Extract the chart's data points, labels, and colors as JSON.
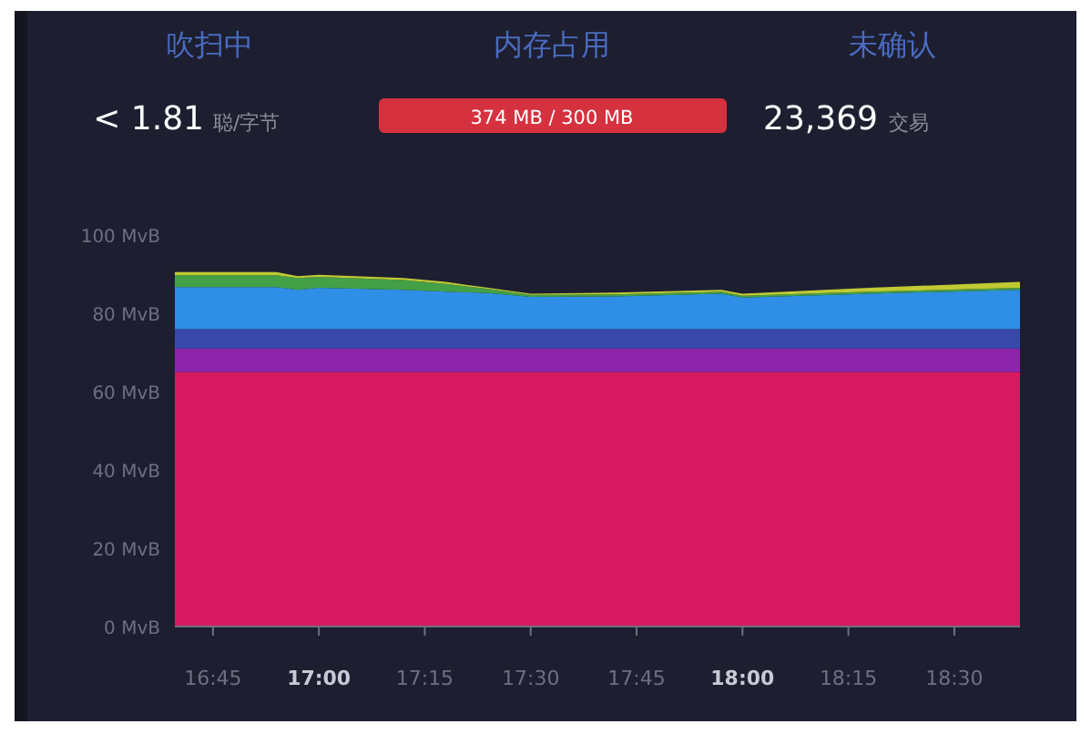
{
  "chart_data": {
    "type": "area",
    "stacked": true,
    "annotations": [
      "吹扫中",
      "< 1.81",
      "聪/字节",
      "内存占用",
      "374 MB / 300 MB",
      "未确认",
      "23,369",
      "交易"
    ],
    "x": [
      16.66,
      16.9,
      16.95,
      17.0,
      17.2,
      17.3,
      17.4,
      17.5,
      17.7,
      17.95,
      18.0,
      18.3,
      18.655
    ],
    "series": [
      {
        "color": "#d81b60",
        "values": [
          65,
          65,
          65,
          65,
          65,
          65,
          65,
          65,
          65,
          65,
          65,
          65,
          65
        ]
      },
      {
        "color": "#8e24aa",
        "values": [
          6,
          6,
          6,
          6,
          6,
          6,
          6,
          6,
          6,
          6,
          6,
          6,
          6
        ]
      },
      {
        "color": "#3949ab",
        "values": [
          5,
          5,
          5,
          5,
          5,
          5,
          5,
          5,
          5,
          5,
          5,
          5,
          5
        ]
      },
      {
        "color": "#2f8fe6",
        "values": [
          10.7,
          10.7,
          10,
          10.5,
          10,
          9.5,
          9.2,
          8.2,
          8.3,
          9,
          8,
          9,
          10
        ]
      },
      {
        "color": "#43a047",
        "values": [
          3,
          3,
          3,
          2.8,
          2.5,
          2,
          1,
          0.5,
          0.5,
          0.5,
          0.5,
          0.5,
          0.5
        ]
      },
      {
        "color": "#c0ca33",
        "values": [
          0.8,
          0.8,
          0.5,
          0.5,
          0.5,
          0.5,
          0.3,
          0.3,
          0.5,
          0.5,
          0.5,
          1,
          1.5
        ]
      }
    ],
    "xlim": [
      16.66,
      18.655
    ],
    "xticks": [
      {
        "value": 16.75,
        "label": "16:45"
      },
      {
        "value": 17,
        "label": "17:00"
      },
      {
        "value": 17.25,
        "label": "17:15"
      },
      {
        "value": 17.5,
        "label": "17:30"
      },
      {
        "value": 17.75,
        "label": "17:45"
      },
      {
        "value": 18,
        "label": "18:00"
      },
      {
        "value": 18.25,
        "label": "18:15"
      },
      {
        "value": 18.5,
        "label": "18:30"
      }
    ],
    "ylim": [
      0,
      100
    ],
    "yticks": [
      {
        "value": 0,
        "label": "0 MvB"
      },
      {
        "value": 20,
        "label": "20 MvB"
      },
      {
        "value": 40,
        "label": "40 MvB"
      },
      {
        "value": 60,
        "label": "60 MvB"
      },
      {
        "value": 80,
        "label": "80 MvB"
      },
      {
        "value": 100,
        "label": "100 MvB"
      }
    ],
    "grid": false
  }
}
